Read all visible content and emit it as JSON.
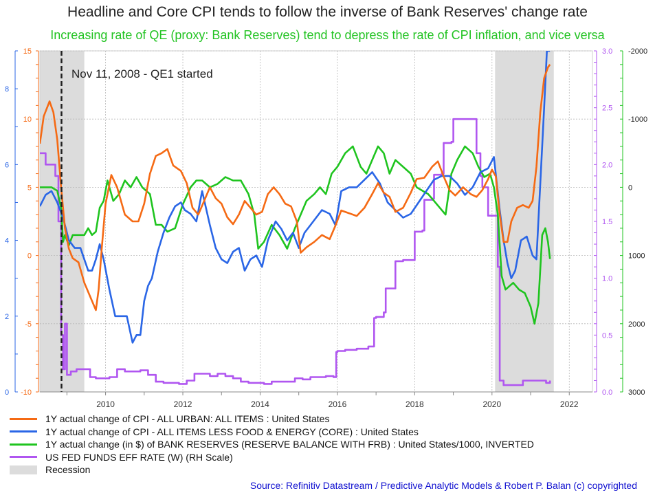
{
  "title": "Headline and Core CPI tends to follow the inverse of Bank Reserves' change rate",
  "subtitle": "Increasing rate of QE (proxy: Bank Reserves) tend to depress the rate of CPI inflation, and vice versa",
  "source": "Source: Refinitiv Datastream / Predictive Analytic Models & Robert P. Balan (c) copyrighted",
  "colors": {
    "cpi": "#f56a14",
    "core": "#2a66e6",
    "reserves": "#1fc41f",
    "fedfunds": "#b056f0",
    "recession": "#dcdcdc"
  },
  "chart_data": {
    "type": "line",
    "annotation": {
      "label": "Nov 11, 2008 - QE1 started",
      "x": 2008.86
    },
    "x_axis": {
      "range": [
        2008.3,
        2022.6
      ],
      "ticks": [
        "2010",
        "2012",
        "2014",
        "2016",
        "2018",
        "2020",
        "2022"
      ],
      "tick_values": [
        2010,
        2012,
        2014,
        2016,
        2018,
        2020,
        2022
      ]
    },
    "axes": {
      "cpi": {
        "range": [
          -10,
          15
        ],
        "ticks": [
          "-10",
          "-5",
          "0",
          "5",
          "10",
          "15"
        ],
        "tick_values": [
          -10,
          -5,
          0,
          5,
          10,
          15
        ]
      },
      "core": {
        "range": [
          0,
          9
        ],
        "ticks": [
          "0",
          "2",
          "4",
          "6",
          "8"
        ],
        "tick_values": [
          0,
          2,
          4,
          6,
          8
        ]
      },
      "fedfunds": {
        "range": [
          0,
          3
        ],
        "ticks": [
          "0.0",
          "0.5",
          "1.0",
          "1.5",
          "2.0",
          "2.5",
          "3.0"
        ],
        "tick_values": [
          0,
          0.5,
          1,
          1.5,
          2,
          2.5,
          3
        ]
      },
      "reserves": {
        "range": [
          -2000,
          3000
        ],
        "inverted": true,
        "ticks": [
          "-2000",
          "-1000",
          "0",
          "1000",
          "2000",
          "3000"
        ],
        "tick_values": [
          -2000,
          -1000,
          0,
          1000,
          2000,
          3000
        ]
      }
    },
    "recessions": [
      [
        2008.3,
        2009.45
      ],
      [
        2020.08,
        2021.6
      ]
    ],
    "legend": [
      "1Y actual change of CPI - ALL URBAN: ALL ITEMS : United States",
      "1Y actual change of CPI - ALL ITEMS LESS FOOD & ENERGY (CORE) : United States",
      "1Y actual change (in $) of BANK RESERVES (RESERVE BALANCE WITH FRB) : United States/1000, INVERTED",
      "US FED FUNDS EFF RATE (W) (RH Scale)",
      "Recession"
    ],
    "series": [
      {
        "name": "cpi",
        "axis": "cpi",
        "x": [
          2008.3,
          2008.4,
          2008.55,
          2008.65,
          2008.75,
          2008.85,
          2008.95,
          2009.05,
          2009.15,
          2009.3,
          2009.45,
          2009.6,
          2009.75,
          2009.82,
          2009.9,
          2010.0,
          2010.15,
          2010.3,
          2010.5,
          2010.7,
          2010.85,
          2011.0,
          2011.15,
          2011.3,
          2011.45,
          2011.6,
          2011.75,
          2011.95,
          2012.1,
          2012.25,
          2012.4,
          2012.55,
          2012.7,
          2012.85,
          2013.0,
          2013.15,
          2013.3,
          2013.45,
          2013.6,
          2013.75,
          2013.9,
          2014.05,
          2014.2,
          2014.35,
          2014.5,
          2014.65,
          2014.8,
          2014.95,
          2015.05,
          2015.2,
          2015.4,
          2015.6,
          2015.8,
          2015.95,
          2016.1,
          2016.3,
          2016.5,
          2016.7,
          2016.9,
          2017.05,
          2017.2,
          2017.35,
          2017.5,
          2017.7,
          2017.9,
          2018.05,
          2018.25,
          2018.45,
          2018.6,
          2018.75,
          2018.9,
          2019.05,
          2019.25,
          2019.45,
          2019.6,
          2019.75,
          2019.9,
          2020.0,
          2020.1,
          2020.2,
          2020.3,
          2020.4,
          2020.5,
          2020.65,
          2020.8,
          2020.95,
          2021.05,
          2021.15,
          2021.25,
          2021.35,
          2021.45,
          2021.5
        ],
        "values": [
          8.2,
          10.2,
          11.3,
          10.5,
          8.5,
          5.0,
          2.0,
          0.5,
          -0.2,
          -0.5,
          -2.0,
          -3.0,
          -4.0,
          -2.5,
          0.5,
          3.8,
          5.9,
          5.0,
          3.0,
          2.5,
          2.5,
          3.8,
          6.0,
          7.3,
          7.5,
          7.8,
          6.6,
          6.2,
          5.3,
          3.5,
          3.0,
          4.0,
          5.0,
          4.2,
          3.8,
          2.8,
          2.3,
          3.0,
          4.0,
          3.5,
          3.0,
          3.2,
          4.5,
          5.0,
          4.5,
          3.8,
          3.6,
          2.5,
          0.2,
          0.6,
          1.0,
          1.5,
          1.2,
          2.2,
          3.3,
          3.1,
          2.9,
          3.5,
          4.5,
          5.3,
          4.6,
          4.3,
          3.2,
          3.5,
          4.6,
          5.6,
          5.7,
          6.5,
          6.9,
          5.8,
          4.8,
          4.4,
          5.0,
          4.5,
          4.3,
          4.8,
          5.6,
          6.3,
          5.8,
          3.0,
          1.0,
          1.0,
          2.5,
          3.5,
          3.7,
          3.5,
          4.0,
          6.5,
          10.5,
          13.0,
          13.8,
          14.0
        ]
      },
      {
        "name": "core",
        "axis": "core",
        "x": [
          2008.3,
          2008.45,
          2008.6,
          2008.75,
          2008.9,
          2009.05,
          2009.2,
          2009.35,
          2009.55,
          2009.65,
          2009.75,
          2009.85,
          2009.95,
          2010.1,
          2010.25,
          2010.4,
          2010.55,
          2010.7,
          2010.8,
          2010.9,
          2011.0,
          2011.1,
          2011.2,
          2011.35,
          2011.5,
          2011.65,
          2011.8,
          2011.95,
          2012.05,
          2012.2,
          2012.35,
          2012.5,
          2012.7,
          2012.85,
          2013.0,
          2013.15,
          2013.3,
          2013.45,
          2013.6,
          2013.75,
          2013.9,
          2014.05,
          2014.2,
          2014.4,
          2014.55,
          2014.7,
          2014.85,
          2015.0,
          2015.15,
          2015.3,
          2015.45,
          2015.6,
          2015.8,
          2015.95,
          2016.1,
          2016.3,
          2016.5,
          2016.7,
          2016.9,
          2017.1,
          2017.3,
          2017.5,
          2017.7,
          2017.9,
          2018.1,
          2018.3,
          2018.5,
          2018.7,
          2018.9,
          2019.1,
          2019.3,
          2019.5,
          2019.7,
          2019.9,
          2020.05,
          2020.2,
          2020.3,
          2020.4,
          2020.5,
          2020.6,
          2020.75,
          2020.9,
          2021.05,
          2021.15,
          2021.25,
          2021.35,
          2021.42,
          2021.5
        ],
        "values": [
          4.9,
          5.2,
          5.3,
          5.0,
          4.6,
          4.0,
          3.8,
          3.8,
          3.2,
          3.2,
          3.5,
          3.9,
          3.5,
          2.7,
          2.0,
          2.0,
          2.0,
          1.3,
          1.5,
          1.5,
          2.4,
          2.8,
          3.0,
          3.7,
          4.2,
          4.6,
          4.9,
          5.0,
          4.8,
          4.7,
          4.5,
          5.3,
          4.4,
          3.8,
          3.5,
          3.4,
          3.7,
          3.8,
          3.2,
          3.5,
          3.6,
          3.3,
          4.0,
          4.5,
          4.3,
          4.0,
          4.2,
          3.8,
          4.2,
          4.4,
          4.6,
          4.8,
          4.7,
          4.4,
          5.3,
          5.4,
          5.4,
          5.6,
          5.8,
          5.5,
          5.0,
          4.8,
          4.6,
          4.7,
          5.0,
          5.3,
          5.6,
          5.7,
          5.7,
          5.5,
          5.2,
          5.4,
          5.8,
          5.9,
          6.2,
          4.8,
          4.0,
          3.4,
          3.0,
          3.2,
          4.0,
          4.1,
          3.6,
          3.5,
          5.5,
          7.5,
          9.0,
          9.0
        ]
      },
      {
        "name": "reserves",
        "axis": "reserves",
        "x": [
          2008.3,
          2008.4,
          2008.6,
          2008.75,
          2008.85,
          2008.9,
          2008.95,
          2009.05,
          2009.15,
          2009.3,
          2009.45,
          2009.55,
          2009.65,
          2009.75,
          2009.85,
          2009.95,
          2010.05,
          2010.2,
          2010.35,
          2010.5,
          2010.65,
          2010.8,
          2010.95,
          2011.05,
          2011.15,
          2011.3,
          2011.45,
          2011.6,
          2011.8,
          2012.0,
          2012.2,
          2012.35,
          2012.5,
          2012.7,
          2012.9,
          2013.1,
          2013.3,
          2013.5,
          2013.7,
          2013.85,
          2013.95,
          2014.1,
          2014.3,
          2014.5,
          2014.7,
          2014.9,
          2015.05,
          2015.2,
          2015.4,
          2015.55,
          2015.7,
          2015.85,
          2016.0,
          2016.2,
          2016.4,
          2016.6,
          2016.75,
          2016.9,
          2017.05,
          2017.2,
          2017.35,
          2017.5,
          2017.7,
          2017.9,
          2018.05,
          2018.2,
          2018.35,
          2018.5,
          2018.65,
          2018.8,
          2018.95,
          2019.1,
          2019.3,
          2019.5,
          2019.65,
          2019.8,
          2019.95,
          2020.05,
          2020.15,
          2020.25,
          2020.35,
          2020.45,
          2020.55,
          2020.7,
          2020.85,
          2021.0,
          2021.1,
          2021.2,
          2021.3,
          2021.38,
          2021.45,
          2021.5
        ],
        "values": [
          0,
          0,
          0,
          50,
          300,
          800,
          700,
          850,
          700,
          700,
          700,
          600,
          700,
          650,
          300,
          200,
          -100,
          200,
          100,
          -100,
          0,
          -150,
          0,
          50,
          100,
          550,
          550,
          650,
          600,
          250,
          0,
          -100,
          -100,
          0,
          -50,
          -150,
          -100,
          -100,
          100,
          400,
          900,
          800,
          550,
          700,
          900,
          600,
          400,
          200,
          100,
          0,
          100,
          -200,
          -300,
          -500,
          -600,
          -300,
          -200,
          -400,
          -600,
          -500,
          -200,
          -400,
          -300,
          -200,
          0,
          50,
          100,
          200,
          300,
          400,
          -200,
          -400,
          -600,
          -500,
          -300,
          -150,
          -200,
          0,
          400,
          1300,
          1500,
          1450,
          1400,
          1500,
          1550,
          1750,
          2000,
          1700,
          700,
          600,
          800,
          1050
        ]
      },
      {
        "name": "fedfunds",
        "axis": "fedfunds",
        "x": [
          2008.3,
          2008.45,
          2008.6,
          2008.7,
          2008.78,
          2008.85,
          2008.9,
          2008.95,
          2009.0,
          2009.1,
          2009.25,
          2009.45,
          2009.6,
          2009.75,
          2009.9,
          2010.1,
          2010.3,
          2010.5,
          2010.7,
          2010.9,
          2011.1,
          2011.3,
          2011.5,
          2011.7,
          2011.9,
          2012.1,
          2012.3,
          2012.5,
          2012.7,
          2012.9,
          2013.1,
          2013.3,
          2013.5,
          2013.7,
          2013.9,
          2014.1,
          2014.3,
          2014.5,
          2014.7,
          2014.9,
          2015.1,
          2015.3,
          2015.5,
          2015.7,
          2015.9,
          2015.97,
          2016.0,
          2016.2,
          2016.5,
          2016.8,
          2016.95,
          2017.0,
          2017.2,
          2017.25,
          2017.45,
          2017.5,
          2017.7,
          2017.95,
          2018.0,
          2018.2,
          2018.25,
          2018.45,
          2018.5,
          2018.7,
          2018.75,
          2018.95,
          2019.0,
          2019.5,
          2019.6,
          2019.7,
          2019.75,
          2019.9,
          2020.0,
          2020.15,
          2020.2,
          2020.3,
          2020.8,
          2021.4,
          2021.5
        ],
        "values": [
          2.1,
          2.0,
          2.0,
          1.9,
          1.5,
          0.5,
          0.2,
          0.6,
          0.15,
          0.18,
          0.2,
          0.2,
          0.13,
          0.12,
          0.12,
          0.13,
          0.2,
          0.18,
          0.18,
          0.19,
          0.15,
          0.09,
          0.08,
          0.08,
          0.07,
          0.1,
          0.16,
          0.16,
          0.14,
          0.16,
          0.14,
          0.12,
          0.09,
          0.08,
          0.08,
          0.07,
          0.09,
          0.09,
          0.09,
          0.12,
          0.11,
          0.13,
          0.13,
          0.14,
          0.13,
          0.35,
          0.36,
          0.37,
          0.38,
          0.4,
          0.65,
          0.66,
          0.7,
          0.91,
          0.91,
          1.15,
          1.16,
          1.16,
          1.41,
          1.42,
          1.69,
          1.7,
          1.91,
          1.92,
          2.19,
          2.2,
          2.4,
          2.4,
          2.1,
          1.9,
          1.8,
          1.55,
          1.55,
          1.1,
          0.1,
          0.06,
          0.1,
          0.08,
          0.1
        ]
      }
    ]
  }
}
